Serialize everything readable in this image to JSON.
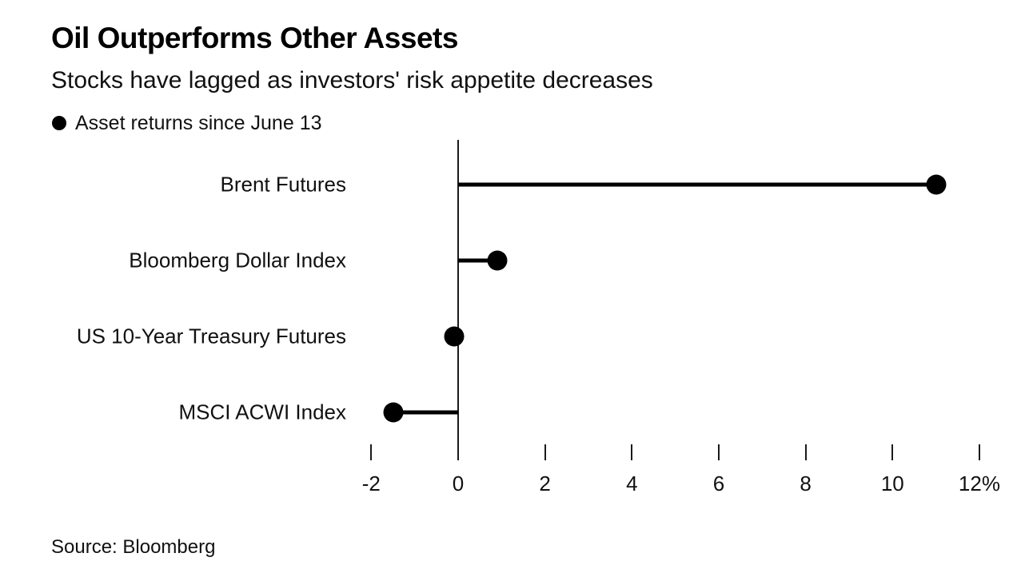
{
  "header": {
    "title": "Oil Outperforms Other Assets",
    "subtitle": "Stocks have lagged as investors' risk appetite decreases"
  },
  "legend": {
    "marker": "filled-circle",
    "label": "Asset returns since June 13"
  },
  "chart_data": {
    "type": "bar",
    "variant": "horizontal-lollipop",
    "title": "Oil Outperforms Other Assets",
    "subtitle": "Stocks have lagged as investors' risk appetite decreases",
    "legend_entries": [
      "Asset returns since June 13"
    ],
    "legend_position": "top-left",
    "categories": [
      "Brent Futures",
      "Bloomberg Dollar Index",
      "US 10-Year Treasury Futures",
      "MSCI ACWI Index"
    ],
    "values": [
      11.0,
      0.9,
      -0.1,
      -1.5
    ],
    "unit": "%",
    "xlabel": "",
    "ylabel": "",
    "xlim": [
      -2,
      12
    ],
    "xticks": [
      -2,
      0,
      2,
      4,
      6,
      8,
      10,
      12
    ],
    "xtick_labels": [
      "-2",
      "0",
      "2",
      "4",
      "6",
      "8",
      "10",
      "12%"
    ],
    "grid": false,
    "zero_baseline": true
  },
  "colors": {
    "background": "#ffffff",
    "marker": "#000000",
    "stem": "#000000",
    "axis": "#1a1a1a",
    "text": "#111111",
    "title_text": "#000000"
  },
  "footer": {
    "source": "Source: Bloomberg"
  }
}
